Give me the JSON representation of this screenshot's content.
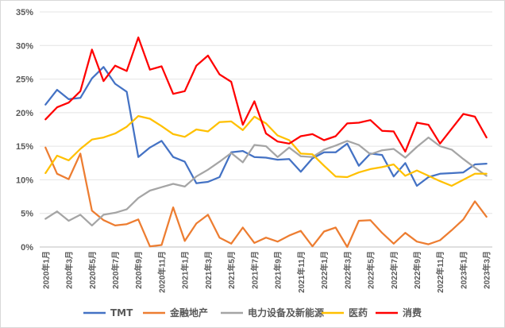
{
  "chart_data": {
    "type": "line",
    "title": "",
    "xlabel": "",
    "ylabel": "",
    "ylim": [
      0,
      35
    ],
    "y_ticks": [
      "0%",
      "5%",
      "10%",
      "15%",
      "20%",
      "25%",
      "30%",
      "35%"
    ],
    "y_tick_values": [
      0,
      5,
      10,
      15,
      20,
      25,
      30,
      35
    ],
    "grid": "horizontal",
    "legend": "bottom",
    "x": [
      "2020年1月",
      "2020年2月",
      "2020年3月",
      "2020年4月",
      "2020年5月",
      "2020年6月",
      "2020年7月",
      "2020年8月",
      "2020年9月",
      "2020年10月",
      "2020年11月",
      "2020年12月",
      "2021年1月",
      "2021年2月",
      "2021年3月",
      "2021年4月",
      "2021年5月",
      "2021年6月",
      "2021年7月",
      "2021年8月",
      "2021年9月",
      "2021年10月",
      "2021年11月",
      "2021年12月",
      "2022年1月",
      "2022年2月",
      "2022年3月",
      "2022年4月",
      "2022年5月",
      "2022年6月",
      "2022年7月",
      "2022年8月",
      "2022年9月",
      "2022年10月",
      "2022年11月",
      "2022年12月",
      "2023年1月",
      "2023年2月",
      "2023年3月"
    ],
    "x_tick_labels": [
      "2020年1月",
      "2020年3月",
      "2020年5月",
      "2020年7月",
      "2020年9月",
      "2020年11月",
      "2021年1月",
      "2021年3月",
      "2021年5月",
      "2021年7月",
      "2021年9月",
      "2021年11月",
      "2022年1月",
      "2022年3月",
      "2022年5月",
      "2022年7月",
      "2022年9月",
      "2022年11月",
      "2023年1月",
      "2023年3月"
    ],
    "series": [
      {
        "name": "TMT",
        "color": "#4472C4",
        "values": [
          21.2,
          23.4,
          22.0,
          22.2,
          25.1,
          26.8,
          24.3,
          23.1,
          13.4,
          14.8,
          15.8,
          13.4,
          12.7,
          9.5,
          9.7,
          10.4,
          14.1,
          14.3,
          13.4,
          13.3,
          13.0,
          13.1,
          11.2,
          13.2,
          14.1,
          14.1,
          15.4,
          12.1,
          13.9,
          13.7,
          10.5,
          12.5,
          9.1,
          10.4,
          10.9,
          11.0,
          11.1,
          12.3,
          12.4
        ]
      },
      {
        "name": "金融地产",
        "color": "#ED7D31",
        "values": [
          14.8,
          10.9,
          10.1,
          13.9,
          5.4,
          4.0,
          3.2,
          3.4,
          4.1,
          0.1,
          0.3,
          5.9,
          0.9,
          3.5,
          4.8,
          1.4,
          0.5,
          2.9,
          0.6,
          1.4,
          0.8,
          1.7,
          2.4,
          0.1,
          2.3,
          2.9,
          0.0,
          3.9,
          4.0,
          2.1,
          0.5,
          2.1,
          0.8,
          0.4,
          1.0,
          2.5,
          4.1,
          6.8,
          4.5
        ]
      },
      {
        "name": "电力设备及新能源",
        "color": "#A5A5A5",
        "values": [
          4.2,
          5.3,
          3.9,
          4.8,
          3.2,
          4.8,
          5.1,
          5.6,
          7.3,
          8.4,
          8.9,
          9.4,
          9.0,
          10.5,
          11.5,
          12.7,
          14.0,
          12.6,
          15.2,
          15.0,
          13.4,
          14.8,
          13.5,
          13.4,
          14.5,
          15.1,
          15.8,
          15.2,
          13.8,
          14.4,
          14.6,
          13.3,
          14.9,
          16.3,
          15.0,
          14.5,
          13.1,
          11.8,
          10.6
        ]
      },
      {
        "name": "医药",
        "color": "#FFC000",
        "values": [
          11.0,
          13.6,
          12.9,
          14.6,
          16.0,
          16.3,
          16.9,
          17.9,
          19.5,
          19.1,
          18.0,
          16.8,
          16.4,
          17.5,
          17.2,
          18.6,
          18.7,
          17.4,
          19.4,
          18.4,
          16.6,
          15.9,
          13.9,
          13.8,
          12.1,
          10.5,
          10.4,
          11.1,
          11.6,
          11.9,
          12.3,
          10.6,
          11.4,
          10.6,
          9.8,
          9.1,
          10.0,
          10.9,
          10.9
        ]
      },
      {
        "name": "消费",
        "color": "#FF0000",
        "values": [
          19.0,
          20.8,
          21.5,
          23.2,
          29.4,
          24.7,
          27.0,
          26.2,
          31.2,
          26.4,
          26.9,
          22.8,
          23.2,
          27.0,
          28.5,
          25.7,
          24.6,
          18.2,
          21.7,
          16.9,
          15.7,
          15.4,
          16.5,
          16.8,
          15.9,
          16.5,
          18.4,
          18.5,
          18.9,
          17.3,
          17.2,
          14.2,
          18.5,
          18.2,
          15.4,
          17.6,
          19.8,
          19.4,
          16.3
        ]
      }
    ]
  }
}
